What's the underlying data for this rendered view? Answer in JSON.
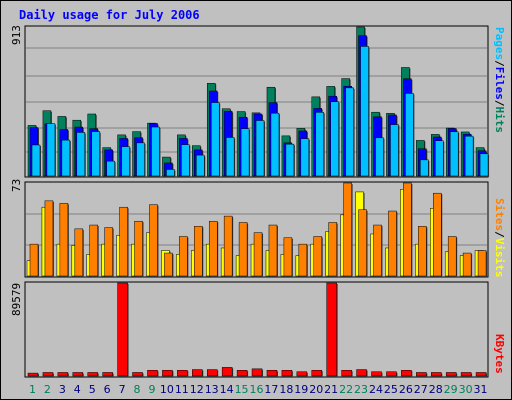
{
  "title": "Daily usage for July 2006",
  "colors": {
    "hits": "#00805c",
    "files": "#0000ff",
    "pages": "#00c0ff",
    "visits": "#ffff00",
    "sites": "#ff8000",
    "kbytes": "#ff0000",
    "weekend_label": "#00805c",
    "weekday_label": "#000080"
  },
  "chart_data": [
    {
      "type": "bar",
      "title": "Daily usage for July 2006",
      "panel": "hits-files-pages",
      "ymax_label": "913",
      "ylim": [
        0,
        913
      ],
      "legend": [
        {
          "label": "Hits",
          "color": "#00805c"
        },
        {
          "label": "/",
          "color": "#000000"
        },
        {
          "label": "Files",
          "color": "#0000ff"
        },
        {
          "label": "/",
          "color": "#000000"
        },
        {
          "label": "Pages",
          "color": "#00c0ff"
        }
      ],
      "categories": [
        "1",
        "2",
        "3",
        "4",
        "5",
        "6",
        "7",
        "8",
        "9",
        "10",
        "11",
        "12",
        "13",
        "14",
        "15",
        "16",
        "17",
        "18",
        "19",
        "20",
        "21",
        "22",
        "23",
        "24",
        "25",
        "26",
        "27",
        "28",
        "29",
        "30",
        "31"
      ],
      "series": [
        {
          "name": "Hits",
          "values": [
            310,
            400,
            365,
            342,
            380,
            174,
            252,
            272,
            324,
            116,
            252,
            186,
            568,
            412,
            395,
            387,
            544,
            246,
            292,
            485,
            549,
            597,
            913,
            391,
            384,
            665,
            218,
            255,
            294,
            270,
            174
          ]
        },
        {
          "name": "Files",
          "values": [
            297,
            320,
            285,
            300,
            290,
            160,
            230,
            235,
            322,
            80,
            230,
            160,
            521,
            396,
            360,
            380,
            450,
            203,
            276,
            414,
            489,
            550,
            860,
            363,
            374,
            596,
            167,
            239,
            291,
            256,
            155
          ]
        },
        {
          "name": "Pages",
          "values": [
            190,
            321,
            220,
            267,
            272,
            91,
            180,
            203,
            300,
            40,
            192,
            128,
            450,
            236,
            290,
            340,
            385,
            195,
            229,
            390,
            455,
            540,
            794,
            234,
            315,
            506,
            99,
            216,
            271,
            244,
            136
          ]
        }
      ]
    },
    {
      "type": "bar",
      "panel": "visits-sites",
      "ymax_label": "73",
      "ylim": [
        0,
        73
      ],
      "legend": [
        {
          "label": "Visits",
          "color": "#ffff00"
        },
        {
          "label": "/",
          "color": "#000000"
        },
        {
          "label": "Sites",
          "color": "#ff8000"
        }
      ],
      "categories": [
        "1",
        "2",
        "3",
        "4",
        "5",
        "6",
        "7",
        "8",
        "9",
        "10",
        "11",
        "12",
        "13",
        "14",
        "15",
        "16",
        "17",
        "18",
        "19",
        "20",
        "21",
        "22",
        "23",
        "24",
        "25",
        "26",
        "27",
        "28",
        "29",
        "30",
        "31"
      ],
      "series": [
        {
          "name": "Visits",
          "values": [
            12,
            54,
            25,
            24,
            17,
            25,
            32,
            25,
            34,
            20,
            17,
            20,
            25,
            22,
            16,
            25,
            20,
            17,
            16,
            25,
            35,
            48,
            66,
            33,
            22,
            68,
            25,
            53,
            19,
            16,
            20
          ]
        },
        {
          "name": "Sites",
          "values": [
            25,
            59,
            57,
            37,
            40,
            38,
            54,
            43,
            56,
            18,
            31,
            39,
            43,
            47,
            42,
            34,
            40,
            30,
            25,
            31,
            42,
            73,
            52,
            40,
            51,
            73,
            39,
            65,
            31,
            18,
            20
          ]
        }
      ]
    },
    {
      "type": "bar",
      "panel": "kbytes",
      "ymax_label": "89579",
      "ylim": [
        0,
        89579
      ],
      "legend": [
        {
          "label": "KBytes",
          "color": "#ff0000"
        }
      ],
      "categories": [
        "1",
        "2",
        "3",
        "4",
        "5",
        "6",
        "7",
        "8",
        "9",
        "10",
        "11",
        "12",
        "13",
        "14",
        "15",
        "16",
        "17",
        "18",
        "19",
        "20",
        "21",
        "22",
        "23",
        "24",
        "25",
        "26",
        "27",
        "28",
        "29",
        "30",
        "31"
      ],
      "series": [
        {
          "name": "KBytes",
          "values": [
            2800,
            3400,
            3400,
            3400,
            3400,
            3400,
            89579,
            3400,
            5500,
            5500,
            5500,
            6200,
            6200,
            8300,
            5500,
            6900,
            5500,
            5500,
            4100,
            5500,
            89579,
            5500,
            6200,
            4100,
            4100,
            5500,
            3400,
            3400,
            3400,
            3400,
            3400
          ]
        }
      ]
    }
  ],
  "x_labels": {
    "days": [
      "1",
      "2",
      "3",
      "4",
      "5",
      "6",
      "7",
      "8",
      "9",
      "10",
      "11",
      "12",
      "13",
      "14",
      "15",
      "16",
      "17",
      "18",
      "19",
      "20",
      "21",
      "22",
      "23",
      "24",
      "25",
      "26",
      "27",
      "28",
      "29",
      "30",
      "31"
    ],
    "weekend_days": [
      "1",
      "2",
      "8",
      "9",
      "15",
      "16",
      "22",
      "23",
      "29",
      "30"
    ]
  }
}
